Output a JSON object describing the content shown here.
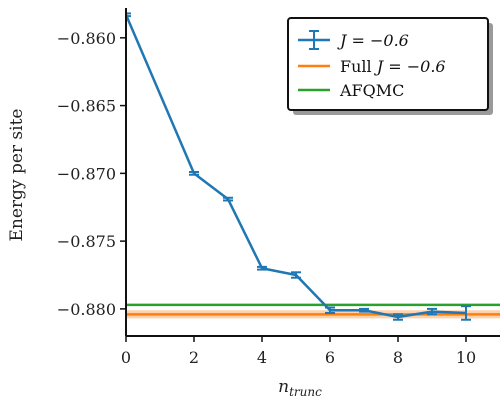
{
  "chart_data": {
    "type": "line",
    "xlabel": "n",
    "xlabel_subscript": "trunc",
    "ylabel": "Energy per site",
    "xlim": [
      0,
      11
    ],
    "ylim": [
      -0.882,
      -0.8578
    ],
    "xticks": [
      0,
      2,
      4,
      6,
      8,
      10
    ],
    "yticks": [
      -0.86,
      -0.865,
      -0.87,
      -0.875,
      -0.88
    ],
    "ytick_labels": [
      "−0.860",
      "−0.865",
      "−0.870",
      "−0.875",
      "−0.880"
    ],
    "legend_position": "top-right",
    "series": [
      {
        "name": "J = −0.6",
        "kind": "errorbar-line",
        "color": "#1f77b4",
        "x": [
          0,
          2,
          3,
          4,
          5,
          6,
          7,
          8,
          9,
          10
        ],
        "y": [
          -0.8583,
          -0.87,
          -0.8719,
          -0.877,
          -0.8775,
          -0.8801,
          -0.8801,
          -0.8806,
          -0.8802,
          -0.8803
        ],
        "yerr": [
          0.0001,
          0.0001,
          0.0001,
          0.0001,
          0.0002,
          0.0002,
          0.0001,
          0.0002,
          0.0002,
          0.0005
        ]
      },
      {
        "name": "Full J = −0.6",
        "kind": "hline-band",
        "color": "#ff7f0e",
        "y": -0.8804,
        "band": 0.0003
      },
      {
        "name": "AFQMC",
        "kind": "hline",
        "color": "#2ca02c",
        "y": -0.8797
      }
    ],
    "legend": [
      {
        "label_prefix": "",
        "label_J": "J = −0.6",
        "marker": "errorbar",
        "color": "#1f77b4"
      },
      {
        "label_prefix": "Full ",
        "label_J": "J = −0.6",
        "marker": "line",
        "color": "#ff7f0e"
      },
      {
        "label_prefix": "AFQMC",
        "label_J": "",
        "marker": "line",
        "color": "#2ca02c"
      }
    ]
  }
}
